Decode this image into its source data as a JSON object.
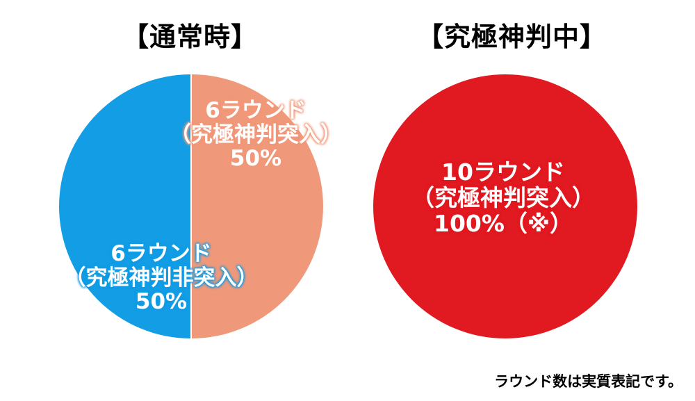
{
  "chart_data": [
    {
      "type": "pie",
      "title": "【通常時】",
      "slices": [
        {
          "label_line1": "6ラウンド",
          "label_line2": "（究極神判突入）",
          "value_text": "50%",
          "value": 50,
          "color": "#f0997a"
        },
        {
          "label_line1": "6ラウンド",
          "label_line2": "（究極神判非突入）",
          "value_text": "50%",
          "value": 50,
          "color": "#139de5"
        }
      ]
    },
    {
      "type": "pie",
      "title": "【究極神判中】",
      "slices": [
        {
          "label_line1": "10ラウンド",
          "label_line2": "（究極神判突入）",
          "value_text": "100%（※）",
          "value": 100,
          "color": "#e11a22"
        }
      ]
    }
  ],
  "footnote": "ラウンド数は実質表記です。"
}
